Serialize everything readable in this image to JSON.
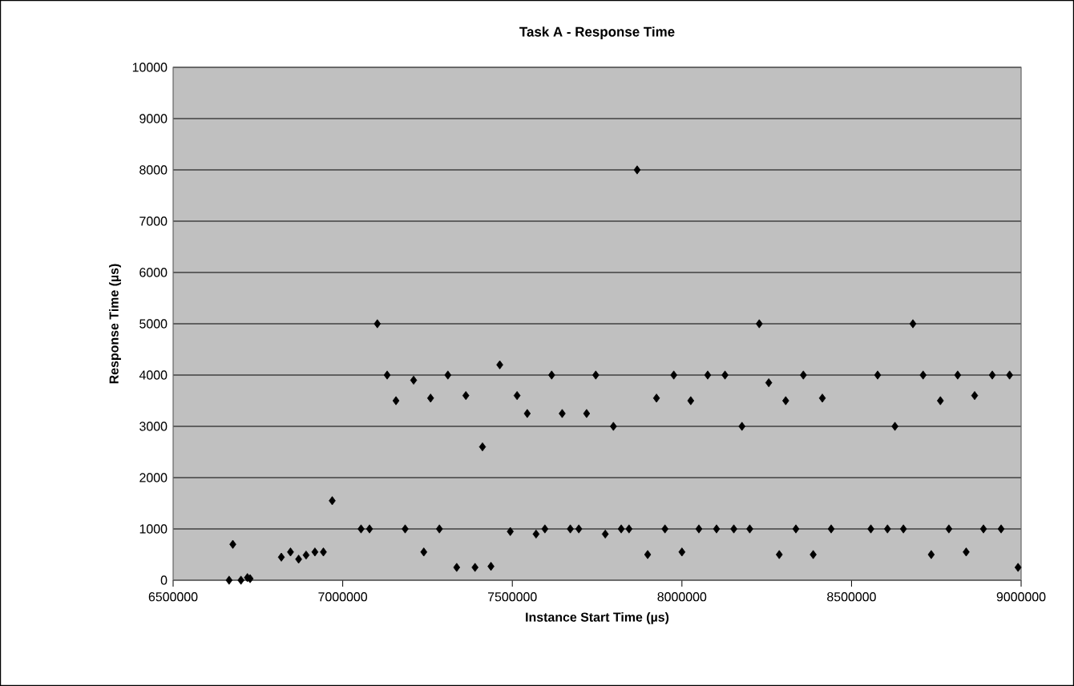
{
  "chart_data": {
    "type": "scatter",
    "title": "Task A - Response Time",
    "xlabel": "Instance Start Time (µs)",
    "ylabel": "Response Time (µs)",
    "x": [
      6665000,
      6676000,
      6700000,
      6719000,
      6727000,
      6819000,
      6846000,
      6870000,
      6892000,
      6918000,
      6943000,
      6969000,
      7054000,
      7079000,
      7102000,
      7131000,
      7157000,
      7184000,
      7209000,
      7239000,
      7259000,
      7285000,
      7310000,
      7336000,
      7363000,
      7390000,
      7412000,
      7437000,
      7463000,
      7494000,
      7514000,
      7544000,
      7570000,
      7596000,
      7616000,
      7647000,
      7671000,
      7696000,
      7719000,
      7746000,
      7774000,
      7798000,
      7821000,
      7844000,
      7868000,
      7899000,
      7925000,
      7950000,
      7976000,
      8000000,
      8026000,
      8050000,
      8076000,
      8102000,
      8127000,
      8153000,
      8177000,
      8200000,
      8228000,
      8256000,
      8287000,
      8306000,
      8336000,
      8358000,
      8387000,
      8414000,
      8440000,
      8557000,
      8577000,
      8606000,
      8628000,
      8653000,
      8681000,
      8711000,
      8735000,
      8762000,
      8787000,
      8813000,
      8838000,
      8863000,
      8889000,
      8915000,
      8941000,
      8966000,
      8991000
    ],
    "values": [
      0,
      700,
      0,
      50,
      30,
      450,
      550,
      410,
      490,
      550,
      550,
      1550,
      1000,
      1000,
      5000,
      4000,
      3500,
      1000,
      3900,
      550,
      3550,
      1000,
      4000,
      250,
      3600,
      250,
      2600,
      270,
      4200,
      950,
      3600,
      3250,
      900,
      1000,
      4000,
      3250,
      1000,
      1000,
      3250,
      4000,
      900,
      3000,
      1000,
      1000,
      8000,
      500,
      3550,
      1000,
      4000,
      550,
      3500,
      1000,
      4000,
      1000,
      4000,
      1000,
      3000,
      1000,
      5000,
      3850,
      500,
      3500,
      1000,
      4000,
      500,
      3550,
      1000,
      1000,
      4000,
      1000,
      3000,
      1000,
      5000,
      4000,
      500,
      3500,
      1000,
      4000,
      550,
      3600,
      1000,
      4000,
      1000,
      4000,
      250
    ],
    "color": "#000000",
    "marker": "diamond",
    "xlim": [
      6500000,
      9000000
    ],
    "ylim": [
      0,
      10000
    ],
    "xticks": [
      6500000,
      7000000,
      7500000,
      8000000,
      8500000,
      9000000
    ],
    "yticks": [
      0,
      1000,
      2000,
      3000,
      4000,
      5000,
      6000,
      7000,
      8000,
      9000,
      10000
    ],
    "grid": "y"
  }
}
